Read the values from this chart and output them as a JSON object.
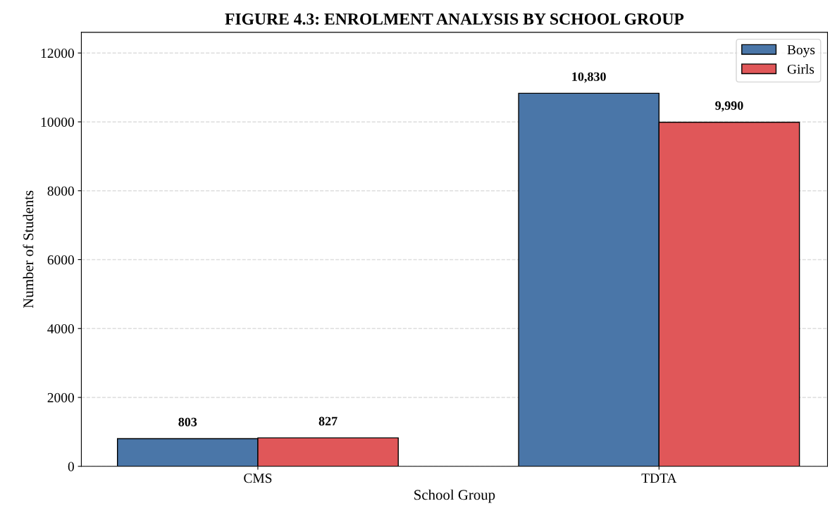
{
  "chart_data": {
    "type": "bar",
    "title": "FIGURE 4.3: ENROLMENT ANALYSIS BY SCHOOL GROUP",
    "xlabel": "School Group",
    "ylabel": "Number of Students",
    "categories": [
      "CMS",
      "TDTA"
    ],
    "series": [
      {
        "name": "Boys",
        "color": "#4a76a8",
        "values": [
          803,
          10830
        ],
        "value_labels": [
          "803",
          "10,830"
        ]
      },
      {
        "name": "Girls",
        "color": "#e05759",
        "values": [
          827,
          9990
        ],
        "value_labels": [
          "827",
          "9,990"
        ]
      }
    ],
    "ylim": [
      0,
      12600
    ],
    "yticks": [
      0,
      2000,
      4000,
      6000,
      8000,
      10000,
      12000
    ],
    "grid": "y",
    "legend": "top right"
  }
}
